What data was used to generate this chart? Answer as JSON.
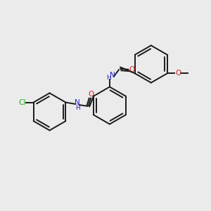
{
  "background_color": "#ebebeb",
  "bond_color": "#1a1a1a",
  "atom_colors": {
    "N": "#2020cc",
    "O": "#cc2020",
    "Cl": "#20aa20",
    "C": "#1a1a1a"
  },
  "figsize": [
    3.0,
    3.0
  ],
  "dpi": 100
}
